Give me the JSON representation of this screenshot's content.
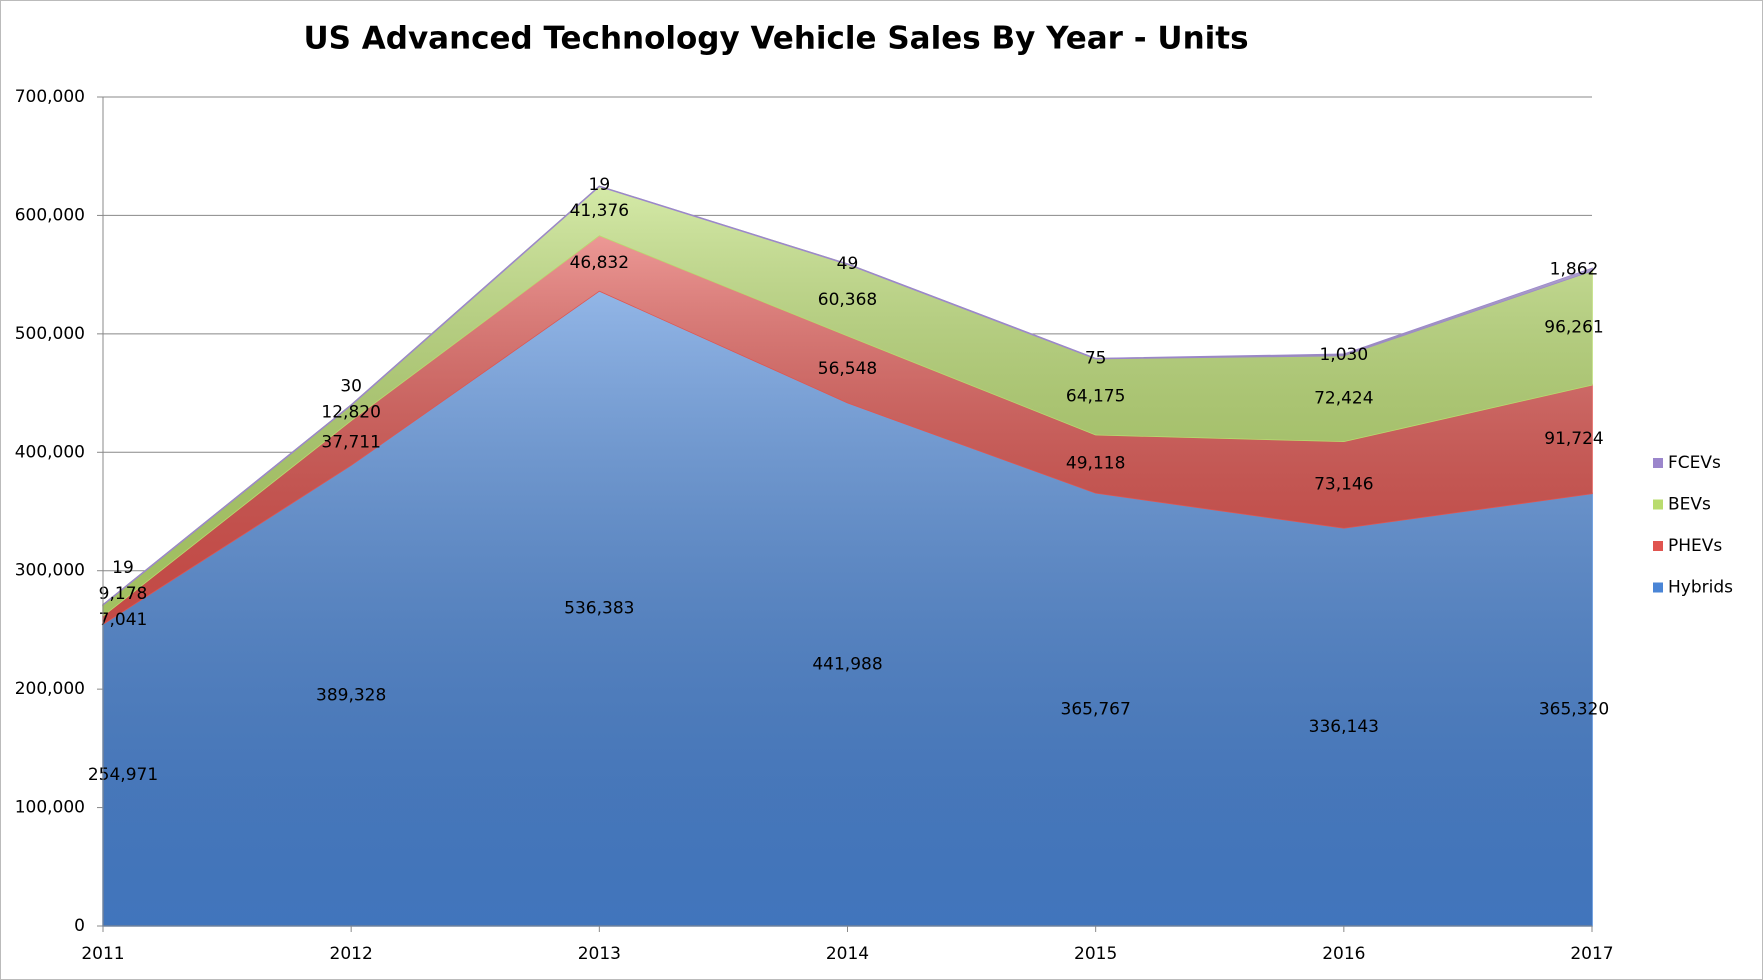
{
  "chart_data": {
    "type": "stacked_area",
    "title": "US Advanced Technology Vehicle Sales By Year - Units",
    "categories": [
      "2011",
      "2012",
      "2013",
      "2014",
      "2015",
      "2016",
      "2017"
    ],
    "series": [
      {
        "name": "Hybrids",
        "color": "#4a85d6",
        "values": [
          254971,
          389328,
          536383,
          441988,
          365767,
          336143,
          365320
        ],
        "value_labels": [
          "254,971",
          "389,328",
          "536,383",
          "441,988",
          "365,767",
          "336,143",
          "365,320"
        ]
      },
      {
        "name": "PHEVs",
        "color": "#e0544f",
        "values": [
          7041,
          37711,
          46832,
          56548,
          49118,
          73146,
          91724
        ],
        "value_labels": [
          "7,041",
          "37,711",
          "46,832",
          "56,548",
          "49,118",
          "73,146",
          "91,724"
        ]
      },
      {
        "name": "BEVs",
        "color": "#b9dc6e",
        "values": [
          9178,
          12820,
          41376,
          60368,
          64175,
          72424,
          96261
        ],
        "value_labels": [
          "9,178",
          "12,820",
          "41,376",
          "60,368",
          "64,175",
          "72,424",
          "96,261"
        ]
      },
      {
        "name": "FCEVs",
        "color": "#9b86cc",
        "values": [
          19,
          30,
          19,
          49,
          75,
          1030,
          1862
        ],
        "value_labels": [
          "19",
          "30",
          "19",
          "49",
          "75",
          "1,030",
          "1,862"
        ]
      }
    ],
    "ylim": [
      0,
      700000
    ],
    "yticks": [
      0,
      {
        "value": 100000,
        "label": "100,000"
      },
      {
        "value": 200000,
        "label": "200,000"
      },
      {
        "value": 300000,
        "label": "300,000"
      },
      {
        "value": 400000,
        "label": "400,000"
      },
      {
        "value": 500000,
        "label": "500,000"
      },
      {
        "value": 600000,
        "label": "600,000"
      },
      {
        "value": 700000,
        "label": "700,000"
      }
    ],
    "grid": true,
    "legend": "right"
  }
}
